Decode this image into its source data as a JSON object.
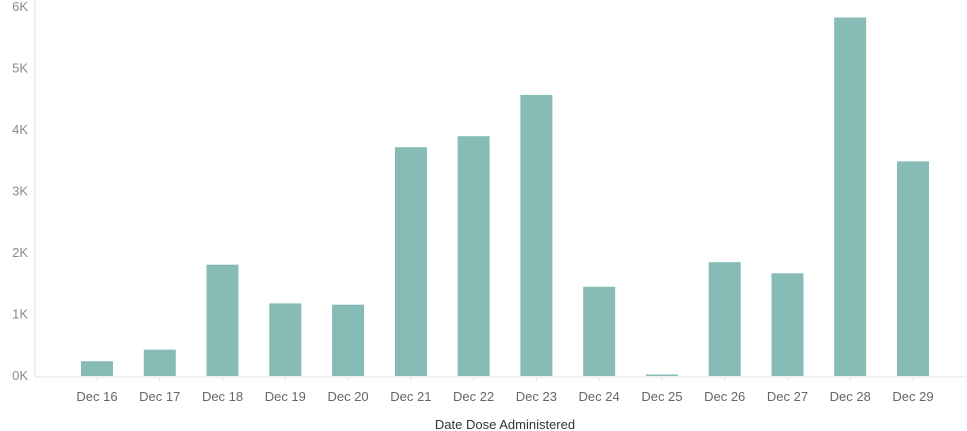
{
  "chart_data": {
    "type": "bar",
    "title": "",
    "xlabel": "Date Dose Administered",
    "ylabel": "",
    "categories": [
      "Dec 16",
      "Dec 17",
      "Dec 18",
      "Dec 19",
      "Dec 20",
      "Dec 21",
      "Dec 22",
      "Dec 23",
      "Dec 24",
      "Dec 25",
      "Dec 26",
      "Dec 27",
      "Dec 28",
      "Dec 29"
    ],
    "values": [
      240,
      430,
      1810,
      1180,
      1160,
      3720,
      3900,
      4570,
      1450,
      20,
      1850,
      1670,
      5830,
      3490
    ],
    "ylim": [
      0,
      6000
    ],
    "yticks": [
      0,
      1000,
      2000,
      3000,
      4000,
      5000,
      6000
    ],
    "ytick_labels": [
      "0K",
      "1K",
      "2K",
      "3K",
      "4K",
      "5K",
      "6K"
    ],
    "grid": false,
    "bar_color": "#86bcb5",
    "axis_color": "#e3e3e3"
  }
}
